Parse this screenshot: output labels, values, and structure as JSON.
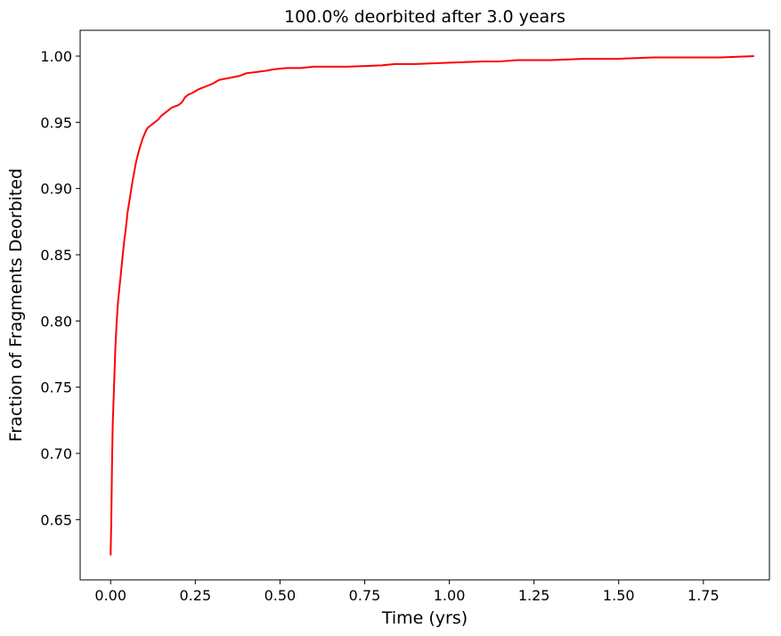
{
  "chart_data": {
    "type": "line",
    "title": "100.0% deorbited after 3.0 years",
    "xlabel": "Time (yrs)",
    "ylabel": "Fraction of Fragments Deorbited",
    "xlim": [
      -0.09,
      1.945
    ],
    "ylim": [
      0.6045,
      1.0195
    ],
    "x_ticks": [
      0.0,
      0.25,
      0.5,
      0.75,
      1.0,
      1.25,
      1.5,
      1.75
    ],
    "x_tick_labels": [
      "0.00",
      "0.25",
      "0.50",
      "0.75",
      "1.00",
      "1.25",
      "1.50",
      "1.75"
    ],
    "y_ticks": [
      0.65,
      0.7,
      0.75,
      0.8,
      0.85,
      0.9,
      0.95,
      1.0
    ],
    "y_tick_labels": [
      "0.65",
      "0.70",
      "0.75",
      "0.80",
      "0.85",
      "0.90",
      "0.95",
      "1.00"
    ],
    "grid": false,
    "legend": "none",
    "series": [
      {
        "color": "#ff0000",
        "x": [
          0.0,
          0.002,
          0.004,
          0.006,
          0.01,
          0.014,
          0.018,
          0.022,
          0.026,
          0.03,
          0.035,
          0.04,
          0.045,
          0.05,
          0.055,
          0.06,
          0.065,
          0.07,
          0.075,
          0.08,
          0.085,
          0.09,
          0.095,
          0.1,
          0.105,
          0.11,
          0.12,
          0.13,
          0.14,
          0.15,
          0.16,
          0.17,
          0.18,
          0.19,
          0.2,
          0.21,
          0.22,
          0.23,
          0.24,
          0.26,
          0.28,
          0.3,
          0.32,
          0.34,
          0.36,
          0.38,
          0.4,
          0.43,
          0.46,
          0.48,
          0.52,
          0.56,
          0.6,
          0.7,
          0.8,
          0.84,
          0.9,
          1.0,
          1.1,
          1.15,
          1.2,
          1.3,
          1.4,
          1.5,
          1.6,
          1.7,
          1.8,
          1.9
        ],
        "y": [
          0.623,
          0.65,
          0.69,
          0.72,
          0.75,
          0.78,
          0.8,
          0.815,
          0.825,
          0.835,
          0.848,
          0.86,
          0.87,
          0.882,
          0.89,
          0.898,
          0.906,
          0.913,
          0.92,
          0.925,
          0.93,
          0.934,
          0.938,
          0.941,
          0.944,
          0.946,
          0.948,
          0.95,
          0.952,
          0.955,
          0.957,
          0.959,
          0.961,
          0.962,
          0.963,
          0.965,
          0.969,
          0.971,
          0.972,
          0.975,
          0.977,
          0.979,
          0.982,
          0.983,
          0.984,
          0.985,
          0.987,
          0.988,
          0.989,
          0.99,
          0.991,
          0.991,
          0.992,
          0.992,
          0.993,
          0.994,
          0.994,
          0.995,
          0.996,
          0.996,
          0.997,
          0.997,
          0.998,
          0.998,
          0.999,
          0.999,
          0.999,
          1.0
        ]
      }
    ]
  }
}
